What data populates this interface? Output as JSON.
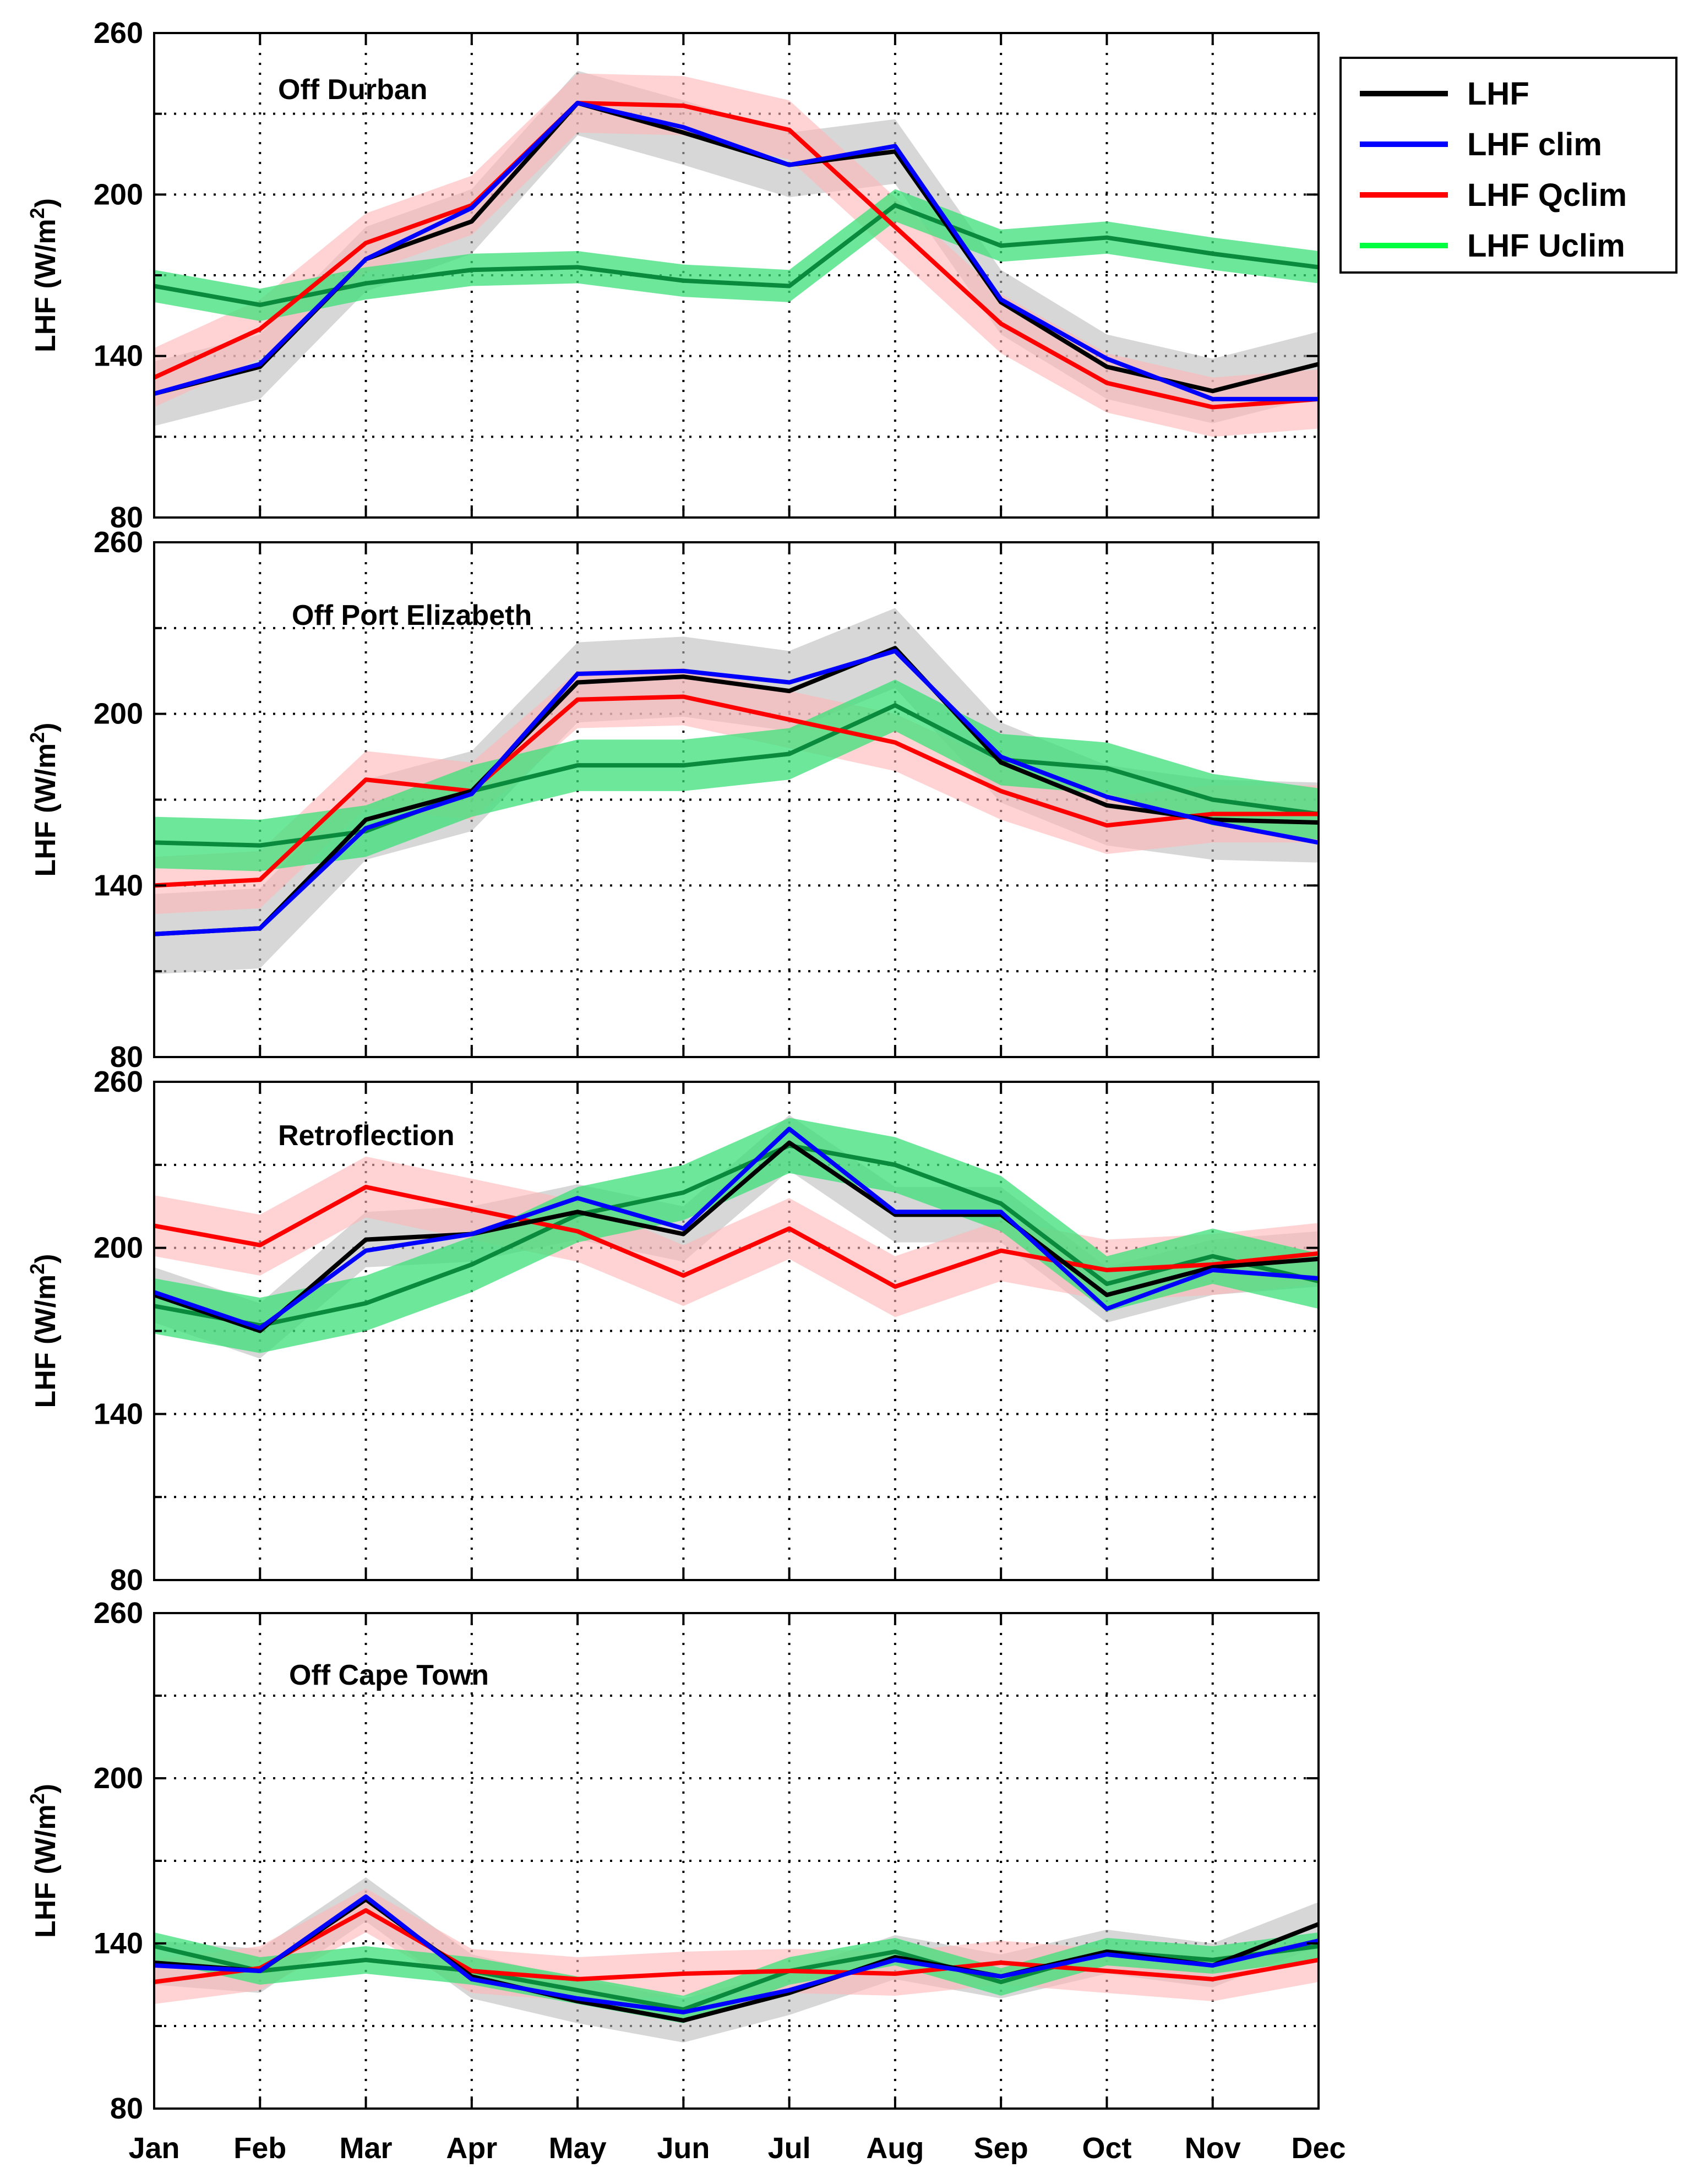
{
  "chart_data": {
    "type": "line",
    "months": [
      "Jan",
      "Feb",
      "Mar",
      "Apr",
      "May",
      "Jun",
      "Jul",
      "Aug",
      "Sep",
      "Oct",
      "Nov",
      "Dec"
    ],
    "ylim": [
      80,
      260
    ],
    "yticks": [
      80,
      140,
      200,
      260
    ],
    "ylabel_main": "LHF (W/m",
    "ylabel_sup": "2",
    "ylabel_end": ")",
    "legend": [
      {
        "key": "lhf",
        "label": "LHF",
        "color": "#000000"
      },
      {
        "key": "clim",
        "label": "LHF clim",
        "color": "#0000ff"
      },
      {
        "key": "qclim",
        "label": "LHF Qclim",
        "color": "#ff0000"
      },
      {
        "key": "uclim",
        "label": "LHF Uclim",
        "color": "#00ff40"
      }
    ],
    "style": {
      "lhf": {
        "line": "#000000",
        "band": "#bdbdbd"
      },
      "clim": {
        "line": "#0000ff",
        "band": null
      },
      "qclim": {
        "line": "#ff0000",
        "band": "#ffb6b6"
      },
      "uclim": {
        "line": "#0a8a3c",
        "band": "#3ce07a"
      }
    },
    "panels": [
      {
        "title": "Off Durban",
        "series": {
          "lhf": [
            126,
            136,
            176,
            190,
            234,
            223,
            211,
            216,
            160,
            136,
            127,
            137
          ],
          "clim": [
            126,
            137,
            176,
            195,
            234,
            225,
            211,
            218,
            161,
            139,
            124,
            124
          ],
          "qclim": [
            132,
            150,
            182,
            196,
            234,
            233,
            224,
            188,
            152,
            130,
            121,
            124
          ],
          "uclim": [
            166,
            159,
            167,
            172,
            173,
            168,
            166,
            196,
            181,
            184,
            178,
            173
          ]
        },
        "band_width": {
          "lhf": 12,
          "qclim": 11,
          "uclim": 6
        }
      },
      {
        "title": "Off Port Elizabeth",
        "series": {
          "lhf": [
            123,
            125,
            163,
            173,
            211,
            213,
            208,
            223,
            183,
            168,
            163,
            162
          ],
          "clim": [
            123,
            125,
            160,
            172,
            214,
            215,
            211,
            222,
            185,
            171,
            162,
            155
          ],
          "qclim": [
            140,
            142,
            177,
            173,
            205,
            206,
            198,
            190,
            173,
            161,
            165,
            165
          ],
          "uclim": [
            155,
            154,
            159,
            173,
            182,
            182,
            186,
            203,
            184,
            181,
            170,
            165
          ]
        },
        "band_width": {
          "lhf": 14,
          "qclim": 10,
          "uclim": 9
        }
      },
      {
        "title": "Retroflection",
        "series": {
          "lhf": [
            183,
            170,
            203,
            205,
            213,
            205,
            238,
            212,
            212,
            183,
            193,
            196
          ],
          "clim": [
            184,
            171,
            199,
            205,
            218,
            207,
            243,
            213,
            213,
            178,
            192,
            189
          ],
          "qclim": [
            208,
            201,
            222,
            214,
            206,
            190,
            207,
            186,
            199,
            192,
            194,
            198
          ],
          "uclim": [
            179,
            172,
            180,
            194,
            212,
            220,
            237,
            230,
            216,
            187,
            197,
            188
          ]
        },
        "band_width": {
          "lhf": 10,
          "qclim": 11,
          "uclim": 10
        }
      },
      {
        "title": "Off Cape Town",
        "series": {
          "lhf": [
            133,
            130,
            156,
            128,
            119,
            112,
            122,
            135,
            128,
            137,
            132,
            147
          ],
          "clim": [
            132,
            130,
            157,
            127,
            120,
            115,
            123,
            134,
            128,
            136,
            132,
            141
          ],
          "qclim": [
            126,
            131,
            152,
            130,
            127,
            129,
            130,
            129,
            133,
            130,
            127,
            134
          ],
          "uclim": [
            139,
            130,
            134,
            130,
            123,
            116,
            130,
            137,
            126,
            137,
            134,
            139
          ]
        },
        "band_width": {
          "lhf": 8,
          "qclim": 8,
          "uclim": 5
        }
      }
    ]
  }
}
